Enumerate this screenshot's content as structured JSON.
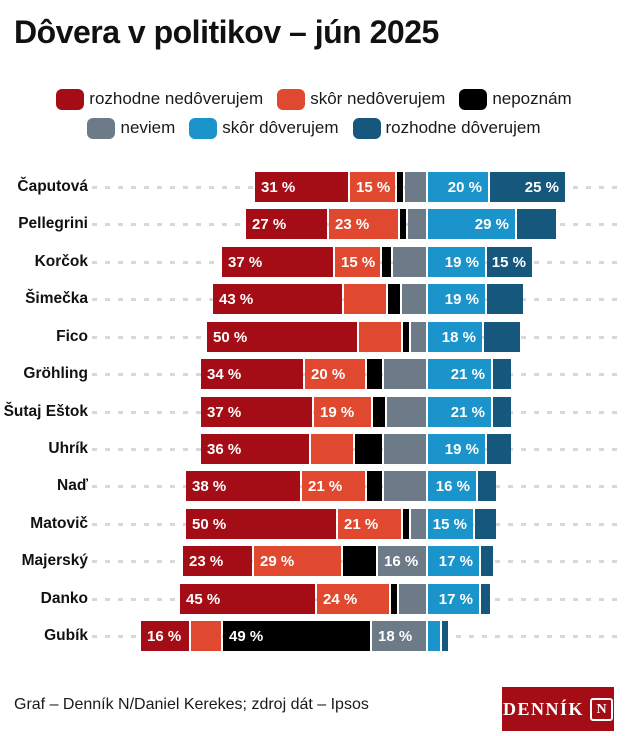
{
  "title": "Dôvera v politikov – jún 2025",
  "legend": {
    "lines": [
      3,
      3
    ],
    "items": [
      {
        "label": "rozhodne nedôverujem",
        "color": "#a50d16"
      },
      {
        "label": "skôr nedôverujem",
        "color": "#e0482f"
      },
      {
        "label": "nepoznám",
        "color": "#000000"
      },
      {
        "label": "neviem",
        "color": "#6d7a88"
      },
      {
        "label": "skôr dôverujem",
        "color": "#1a94ca"
      },
      {
        "label": "rozhodne dôverujem",
        "color": "#15577d"
      }
    ]
  },
  "chart_data": {
    "type": "bar",
    "variant": "diverging-stacked-horizontal",
    "title": "Dôvera v politikov – jún 2025",
    "unit": "%",
    "gridlines": "dashed horizontal per row",
    "axis_labels": "none (values printed on segments of 15 % and larger)",
    "stack_anchor": "between 'neviem' and 'skôr dôverujem'",
    "series": [
      "rozhodne nedôverujem",
      "skôr nedôverujem",
      "nepoznám",
      "neviem",
      "skôr dôverujem",
      "rozhodne dôverujem"
    ],
    "series_colors": [
      "#a50d16",
      "#e0482f",
      "#000000",
      "#6d7a88",
      "#1a94ca",
      "#15577d"
    ],
    "negative_series_count": 4,
    "rows": [
      {
        "name": "Čaputová",
        "values": [
          31,
          15,
          2,
          7,
          20,
          25
        ],
        "segment_labels": [
          "31 %",
          "15 %",
          "",
          "",
          "20 %",
          "25 %"
        ]
      },
      {
        "name": "Pellegrini",
        "values": [
          27,
          23,
          2,
          6,
          29,
          13
        ],
        "segment_labels": [
          "27 %",
          "23 %",
          "",
          "",
          "29 %",
          ""
        ]
      },
      {
        "name": "Korčok",
        "values": [
          37,
          15,
          3,
          11,
          19,
          15
        ],
        "segment_labels": [
          "37 %",
          "15 %",
          "",
          "",
          "19 %",
          "15 %"
        ]
      },
      {
        "name": "Šimečka",
        "values": [
          43,
          14,
          4,
          8,
          19,
          12
        ],
        "segment_labels": [
          "43 %",
          "",
          "",
          "",
          "19 %",
          ""
        ]
      },
      {
        "name": "Fico",
        "values": [
          50,
          14,
          1,
          5,
          18,
          12
        ],
        "segment_labels": [
          "50 %",
          "",
          "",
          "",
          "18 %",
          ""
        ]
      },
      {
        "name": "Gröhling",
        "values": [
          34,
          20,
          5,
          14,
          21,
          6
        ],
        "segment_labels": [
          "34 %",
          "20 %",
          "",
          "",
          "21 %",
          ""
        ]
      },
      {
        "name": "Šutaj Eštok",
        "values": [
          37,
          19,
          4,
          13,
          21,
          6
        ],
        "segment_labels": [
          "37 %",
          "19 %",
          "",
          "",
          "21 %",
          ""
        ]
      },
      {
        "name": "Uhrík",
        "values": [
          36,
          14,
          9,
          14,
          19,
          8
        ],
        "segment_labels": [
          "36 %",
          "",
          "",
          "",
          "19 %",
          ""
        ]
      },
      {
        "name": "Naď",
        "values": [
          38,
          21,
          5,
          14,
          16,
          6
        ],
        "segment_labels": [
          "38 %",
          "21 %",
          "",
          "",
          "16 %",
          ""
        ]
      },
      {
        "name": "Matovič",
        "values": [
          50,
          21,
          2,
          5,
          15,
          7
        ],
        "segment_labels": [
          "50 %",
          "21 %",
          "",
          "",
          "15 %",
          ""
        ]
      },
      {
        "name": "Majerský",
        "values": [
          23,
          29,
          11,
          16,
          17,
          4
        ],
        "segment_labels": [
          "23 %",
          "29 %",
          "",
          "16 %",
          "17 %",
          ""
        ]
      },
      {
        "name": "Danko",
        "values": [
          45,
          24,
          2,
          9,
          17,
          3
        ],
        "segment_labels": [
          "45 %",
          "24 %",
          "",
          "",
          "17 %",
          ""
        ]
      },
      {
        "name": "Gubík",
        "values": [
          16,
          10,
          49,
          18,
          4,
          2
        ],
        "segment_labels": [
          "16 %",
          "",
          "49 %",
          "18 %",
          "",
          ""
        ]
      }
    ]
  },
  "footer": {
    "credit": "Graf – Denník N/Daniel Kerekes; zdroj dát – Ipsos",
    "logo_text": "DENNÍK",
    "logo_n": "N",
    "logo_color": "#a50d16"
  }
}
